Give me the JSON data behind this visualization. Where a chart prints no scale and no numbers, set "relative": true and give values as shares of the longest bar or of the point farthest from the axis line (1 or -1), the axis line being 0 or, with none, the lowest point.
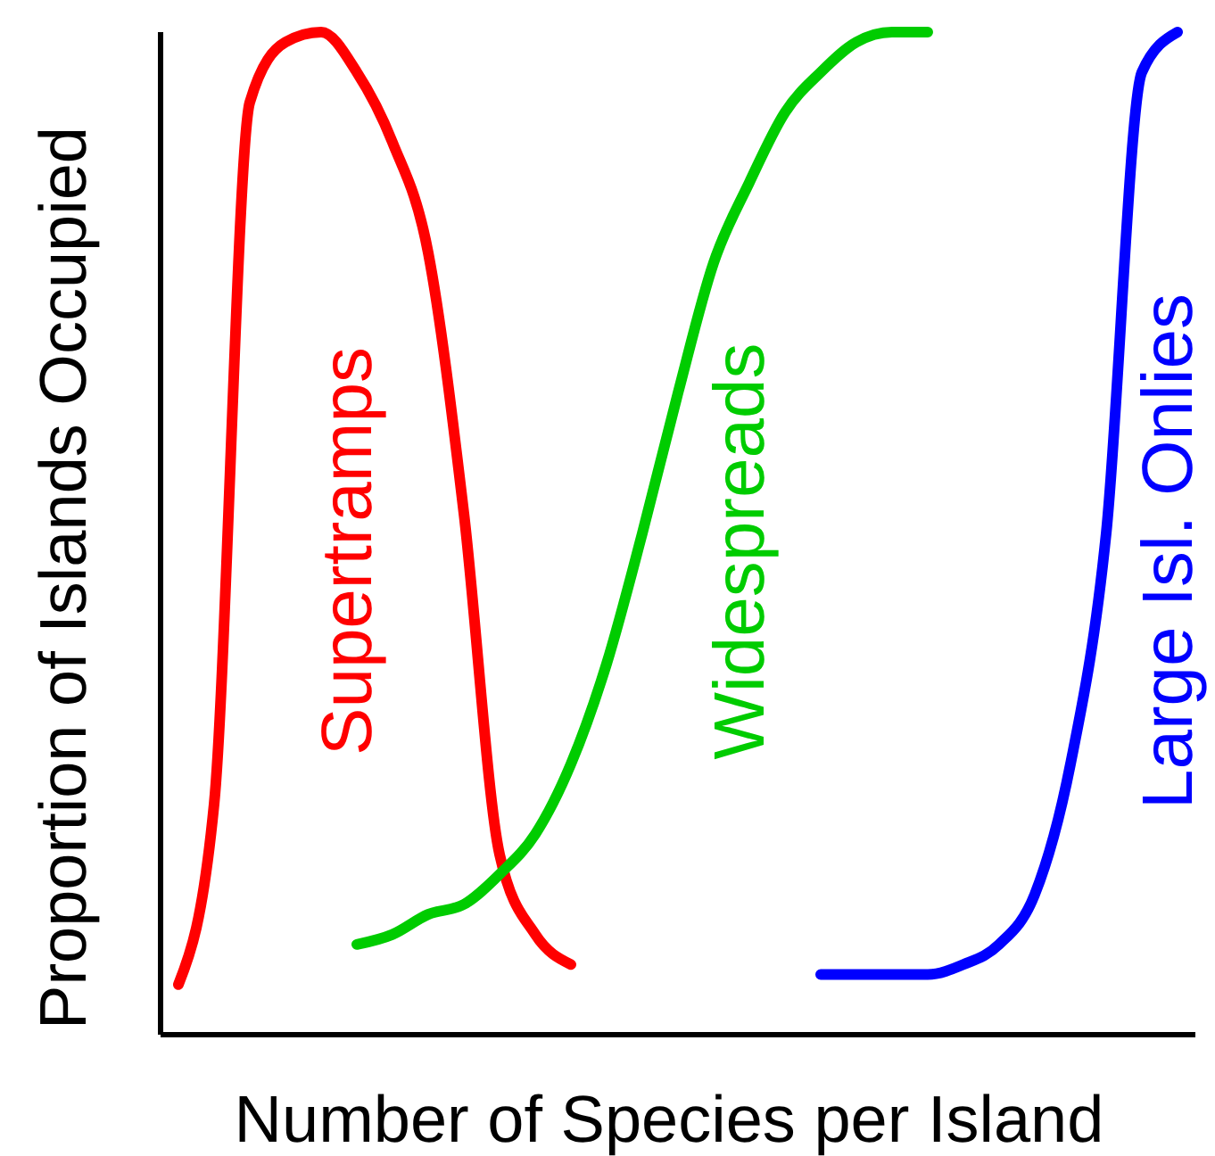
{
  "chart_data": {
    "type": "line",
    "relative": true,
    "xlabel": "Number of Species per Island",
    "ylabel": "Proportion of Islands Occupied",
    "marker": "none",
    "line_style": "solid",
    "categories": [
      null,
      null,
      null,
      null,
      null,
      null,
      null,
      null,
      null,
      null,
      null,
      null,
      null,
      null,
      null,
      null,
      null,
      null,
      null,
      null,
      null,
      null,
      null,
      null,
      null,
      null,
      null,
      null,
      null
    ],
    "series": [
      {
        "name": "Supertramps",
        "color": "#ff0000",
        "values": [
          0.05,
          0.23,
          0.93,
          0.99,
          1.0,
          0.96,
          0.89,
          0.78,
          0.52,
          0.18,
          0.1,
          0.07,
          null,
          null,
          null,
          null,
          null,
          null,
          null,
          null,
          null,
          null,
          null,
          null,
          null,
          null,
          null,
          null,
          null
        ]
      },
      {
        "name": "Widespreads",
        "color": "#00cc00",
        "values": [
          null,
          null,
          null,
          null,
          null,
          0.09,
          0.1,
          0.12,
          0.13,
          0.16,
          0.2,
          0.27,
          0.37,
          0.5,
          0.64,
          0.77,
          0.85,
          0.92,
          0.96,
          0.99,
          1.0,
          1.0,
          null,
          null,
          null,
          null,
          null,
          null,
          null
        ]
      },
      {
        "name": "Large Isl. Onlies",
        "color": "#0000ff",
        "values": [
          null,
          null,
          null,
          null,
          null,
          null,
          null,
          null,
          null,
          null,
          null,
          null,
          null,
          null,
          null,
          null,
          null,
          null,
          0.06,
          0.06,
          0.06,
          0.06,
          0.07,
          0.09,
          0.14,
          0.27,
          0.5,
          0.96,
          1.0
        ]
      }
    ]
  }
}
